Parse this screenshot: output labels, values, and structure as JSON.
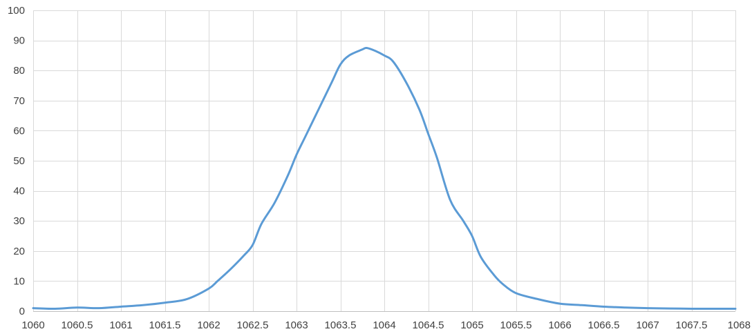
{
  "chart_data": {
    "type": "line",
    "title": "",
    "xlabel": "",
    "ylabel": "",
    "xlim": [
      1060,
      1068
    ],
    "ylim": [
      0,
      100
    ],
    "grid": true,
    "legend": "none",
    "x_ticks": [
      "1060",
      "1060.5",
      "1061",
      "1061.5",
      "1062",
      "1062.5",
      "1063",
      "1063.5",
      "1064",
      "1064.5",
      "1065",
      "1065.5",
      "1066",
      "1066.5",
      "1067",
      "1067.5",
      "1068"
    ],
    "y_ticks": [
      "0",
      "10",
      "20",
      "30",
      "40",
      "50",
      "60",
      "70",
      "80",
      "90",
      "100"
    ],
    "series": [
      {
        "color": "#5b9bd5",
        "x": [
          1060,
          1060.25,
          1060.5,
          1060.75,
          1061,
          1061.25,
          1061.5,
          1061.75,
          1062,
          1062.1,
          1062.25,
          1062.4,
          1062.5,
          1062.6,
          1062.75,
          1062.9,
          1063,
          1063.1,
          1063.25,
          1063.4,
          1063.5,
          1063.6,
          1063.75,
          1063.8,
          1063.9,
          1064,
          1064.1,
          1064.25,
          1064.4,
          1064.5,
          1064.6,
          1064.75,
          1064.9,
          1065,
          1065.1,
          1065.25,
          1065.35,
          1065.5,
          1065.75,
          1066,
          1066.25,
          1066.5,
          1066.75,
          1067,
          1067.25,
          1067.5,
          1067.75,
          1068
        ],
        "y": [
          1,
          0.8,
          1.2,
          1,
          1.5,
          2,
          2.8,
          4,
          7.5,
          10,
          14,
          18.5,
          22,
          29,
          36,
          45,
          52,
          58,
          67,
          76,
          82,
          85,
          87,
          87.5,
          86.5,
          85,
          83,
          76,
          67,
          59,
          51,
          37,
          30,
          25,
          18,
          12,
          9,
          6,
          4,
          2.5,
          2,
          1.5,
          1.2,
          1,
          0.9,
          0.8,
          0.8,
          0.8
        ]
      }
    ]
  }
}
